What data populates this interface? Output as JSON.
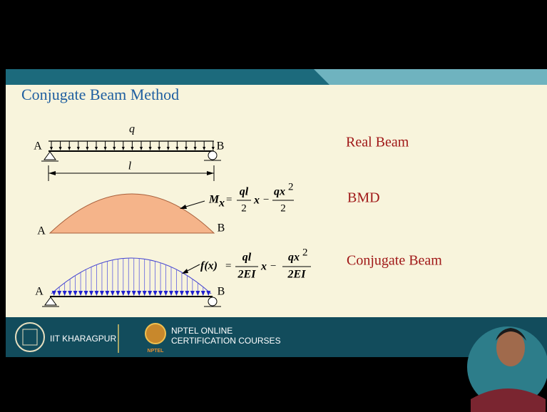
{
  "header": {
    "title": "Conjugate Beam Method"
  },
  "real_beam": {
    "load": "q",
    "left": "A",
    "right": "B",
    "span": "l",
    "label": "Real Beam"
  },
  "bmd": {
    "left": "A",
    "right": "B",
    "label": "BMD",
    "equation": {
      "lhs": "M",
      "lhs_sub": "x",
      "eq": "=",
      "t1_num": "ql",
      "t1_den": "2",
      "var": "x",
      "minus": "−",
      "t2_num": "qx",
      "t2_exp": "2",
      "t2_den": "2"
    }
  },
  "conjugate": {
    "left": "A",
    "right": "B",
    "label": "Conjugate Beam",
    "equation": {
      "lhs": "f(x)",
      "eq": "=",
      "t1_num": "ql",
      "t1_den": "2EI",
      "var": "x",
      "minus": "−",
      "t2_num": "qx",
      "t2_exp": "2",
      "t2_den": "2EI"
    }
  },
  "footer": {
    "institute": "IIT KHARAGPUR",
    "program_line1": "NPTEL ONLINE",
    "program_line2": "CERTIFICATION COURSES",
    "logo_text": "NPTEL"
  }
}
